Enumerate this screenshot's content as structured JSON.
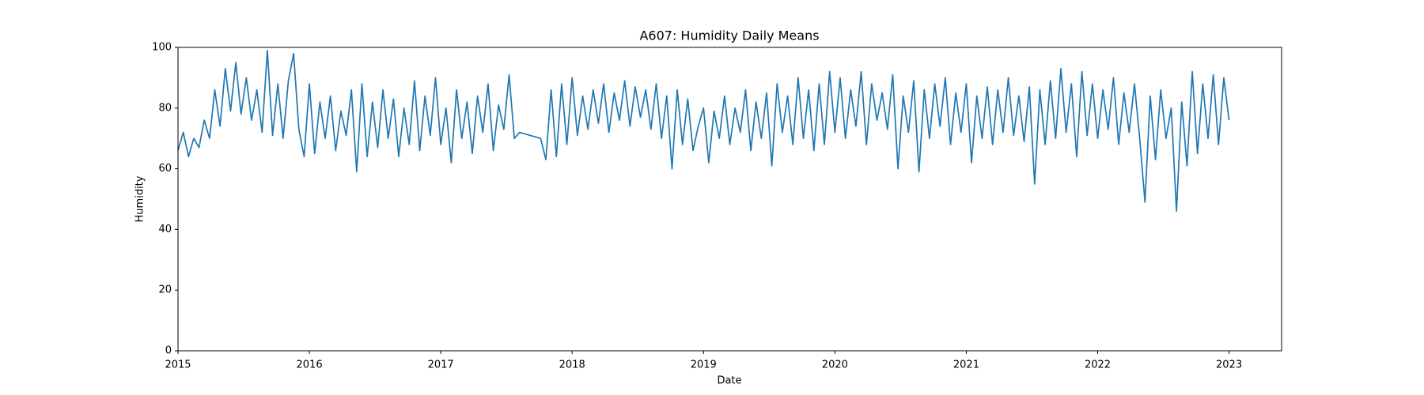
{
  "chart_data": {
    "type": "line",
    "title": "A607: Humidity Daily Means",
    "x_label": "Date",
    "y_label": "Humidity",
    "x": [
      2015.0,
      2015.04,
      2015.08,
      2015.12,
      2015.16,
      2015.2,
      2015.24,
      2015.28,
      2015.32,
      2015.36,
      2015.4,
      2015.44,
      2015.48,
      2015.52,
      2015.56,
      2015.6,
      2015.64,
      2015.68,
      2015.72,
      2015.76,
      2015.8,
      2015.84,
      2015.88,
      2015.92,
      2015.96,
      2016.0,
      2016.04,
      2016.08,
      2016.12,
      2016.16,
      2016.2,
      2016.24,
      2016.28,
      2016.32,
      2016.36,
      2016.4,
      2016.44,
      2016.48,
      2016.52,
      2016.56,
      2016.6,
      2016.64,
      2016.68,
      2016.72,
      2016.76,
      2016.8,
      2016.84,
      2016.88,
      2016.92,
      2016.96,
      2017.0,
      2017.04,
      2017.08,
      2017.12,
      2017.16,
      2017.2,
      2017.24,
      2017.28,
      2017.32,
      2017.36,
      2017.4,
      2017.44,
      2017.48,
      2017.52,
      2017.56,
      2017.6,
      2017.76,
      2017.8,
      2017.84,
      2017.88,
      2017.92,
      2017.96,
      2018.0,
      2018.04,
      2018.08,
      2018.12,
      2018.16,
      2018.2,
      2018.24,
      2018.28,
      2018.32,
      2018.36,
      2018.4,
      2018.44,
      2018.48,
      2018.52,
      2018.56,
      2018.6,
      2018.64,
      2018.68,
      2018.72,
      2018.76,
      2018.8,
      2018.84,
      2018.88,
      2018.92,
      2018.96,
      2019.0,
      2019.04,
      2019.08,
      2019.12,
      2019.16,
      2019.2,
      2019.24,
      2019.28,
      2019.32,
      2019.36,
      2019.4,
      2019.44,
      2019.48,
      2019.52,
      2019.56,
      2019.6,
      2019.64,
      2019.68,
      2019.72,
      2019.76,
      2019.8,
      2019.84,
      2019.88,
      2019.92,
      2019.96,
      2020.0,
      2020.04,
      2020.08,
      2020.12,
      2020.16,
      2020.2,
      2020.24,
      2020.28,
      2020.32,
      2020.36,
      2020.4,
      2020.44,
      2020.48,
      2020.52,
      2020.56,
      2020.6,
      2020.64,
      2020.68,
      2020.72,
      2020.76,
      2020.8,
      2020.84,
      2020.88,
      2020.92,
      2020.96,
      2021.0,
      2021.04,
      2021.08,
      2021.12,
      2021.16,
      2021.2,
      2021.24,
      2021.28,
      2021.32,
      2021.36,
      2021.4,
      2021.44,
      2021.48,
      2021.52,
      2021.56,
      2021.6,
      2021.64,
      2021.68,
      2021.72,
      2021.76,
      2021.8,
      2021.84,
      2021.88,
      2021.92,
      2021.96,
      2022.0,
      2022.04,
      2022.08,
      2022.12,
      2022.16,
      2022.2,
      2022.24,
      2022.28,
      2022.32,
      2022.36,
      2022.4,
      2022.44,
      2022.48,
      2022.52,
      2022.56,
      2022.6,
      2022.64,
      2022.68,
      2022.72,
      2022.76,
      2022.8,
      2022.84,
      2022.88,
      2022.92,
      2022.96,
      2023.0
    ],
    "values": [
      66,
      72,
      64,
      70,
      67,
      76,
      70,
      86,
      74,
      93,
      79,
      95,
      78,
      90,
      76,
      86,
      72,
      99,
      71,
      88,
      70,
      89,
      98,
      73,
      64,
      88,
      65,
      82,
      70,
      84,
      66,
      79,
      71,
      86,
      59,
      88,
      64,
      82,
      67,
      86,
      70,
      83,
      64,
      80,
      68,
      89,
      66,
      84,
      71,
      90,
      68,
      80,
      62,
      86,
      70,
      82,
      65,
      84,
      72,
      88,
      66,
      81,
      73,
      91,
      70,
      72,
      70,
      63,
      86,
      64,
      88,
      68,
      90,
      71,
      84,
      73,
      86,
      75,
      88,
      72,
      85,
      76,
      89,
      74,
      87,
      77,
      86,
      73,
      88,
      70,
      84,
      60,
      86,
      68,
      83,
      66,
      74,
      80,
      62,
      79,
      70,
      84,
      68,
      80,
      72,
      86,
      66,
      82,
      70,
      85,
      61,
      88,
      72,
      84,
      68,
      90,
      70,
      86,
      66,
      88,
      68,
      92,
      72,
      90,
      70,
      86,
      74,
      92,
      68,
      88,
      76,
      85,
      73,
      91,
      60,
      84,
      72,
      89,
      59,
      86,
      70,
      88,
      74,
      90,
      68,
      85,
      72,
      88,
      62,
      84,
      70,
      87,
      68,
      86,
      72,
      90,
      71,
      84,
      69,
      87,
      55,
      86,
      68,
      89,
      70,
      93,
      72,
      88,
      64,
      92,
      71,
      88,
      70,
      86,
      73,
      90,
      68,
      85,
      72,
      88,
      70,
      49,
      84,
      63,
      86,
      70,
      80,
      46,
      82,
      61,
      92,
      65,
      88,
      70,
      91,
      68,
      90,
      76
    ],
    "color": "#1f77b4",
    "xlim": [
      2015,
      2023.4
    ],
    "xticks": [
      2015,
      2016,
      2017,
      2018,
      2019,
      2020,
      2021,
      2022,
      2023
    ],
    "ylim": [
      0,
      100
    ],
    "yticks": [
      0,
      20,
      40,
      60,
      80,
      100
    ],
    "grid": false
  }
}
